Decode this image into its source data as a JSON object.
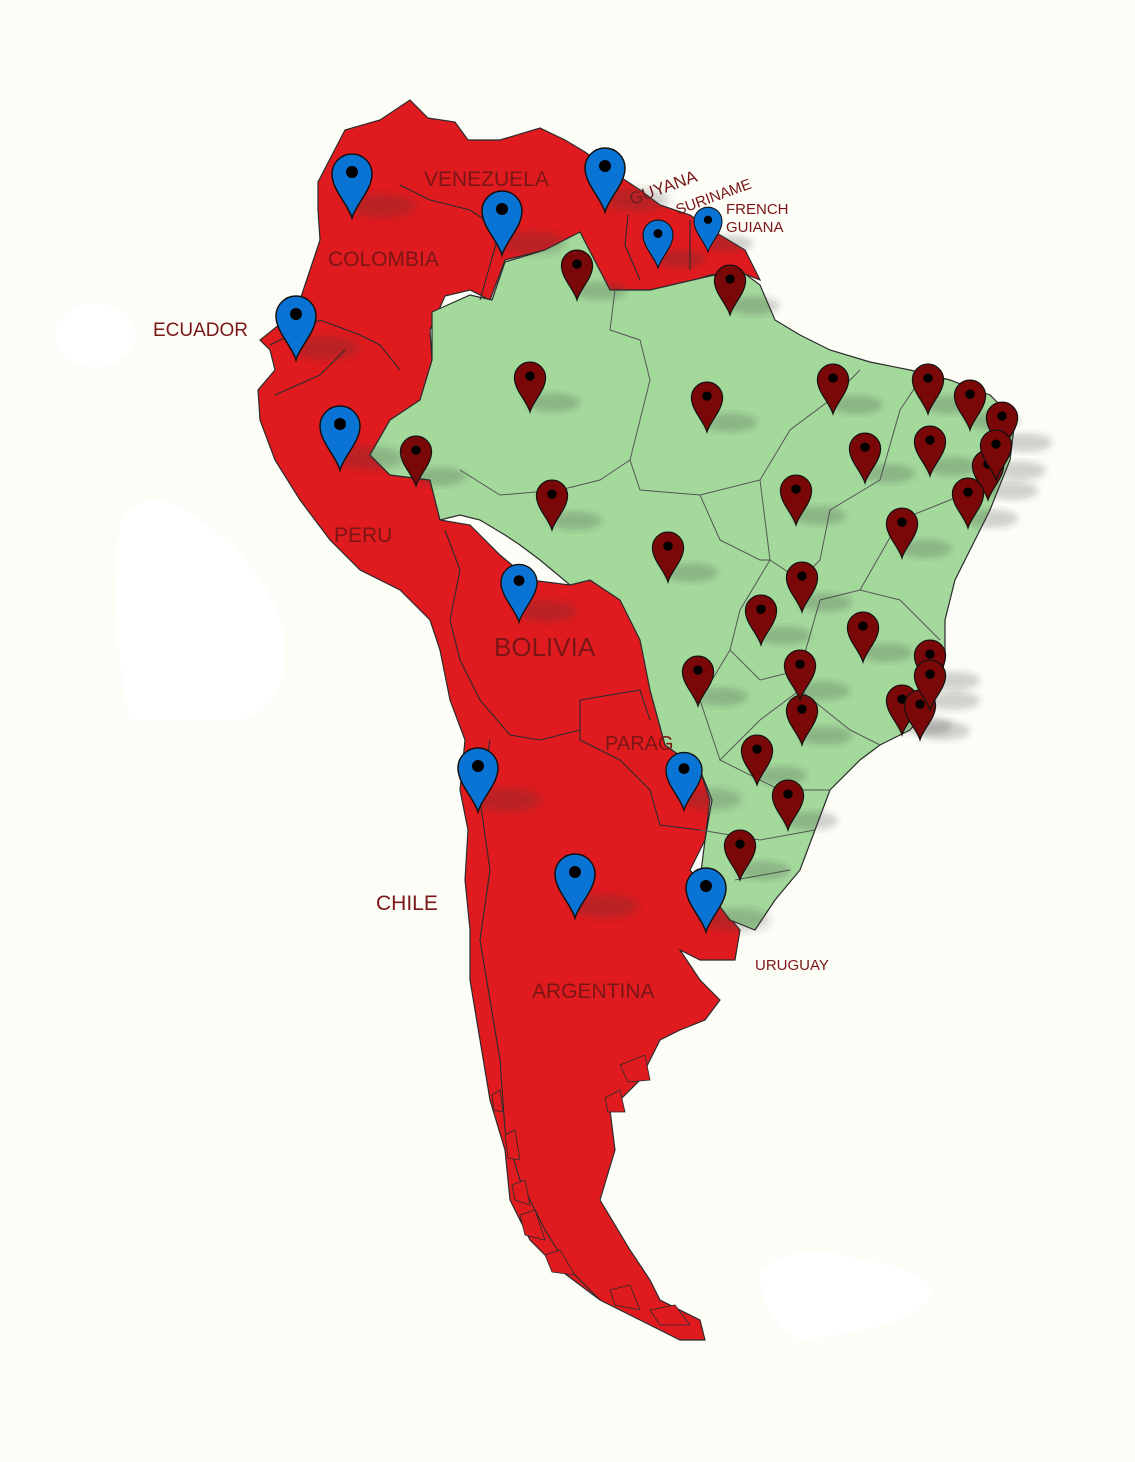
{
  "map": {
    "colors": {
      "background": "#fdfdf8",
      "highlighted_countries": "#e01b1f",
      "brazil": "#a4d99c",
      "border": "#2b2b2b",
      "country_pin": "#0a74d4",
      "state_pin": "#7a0808",
      "label": "#7a1616"
    },
    "labels": {
      "venezuela": "VENEZUELA",
      "guyana": "GUYANA",
      "suriname": "SURINAME",
      "french_guiana_1": "FRENCH",
      "french_guiana_2": "GUIANA",
      "colombia": "COLOMBIA",
      "ecuador": "ECUADOR",
      "peru": "PERU",
      "bolivia": "BOLIVIA",
      "paraguay": "PARAG",
      "chile": "CHILE",
      "argentina": "ARGENTINA",
      "uruguay": "URUGUAY"
    },
    "country_pins": [
      "colombia",
      "venezuela-west",
      "venezuela-east",
      "suriname",
      "french-guiana",
      "ecuador",
      "peru",
      "bolivia",
      "chile",
      "paraguay",
      "argentina",
      "uruguay"
    ],
    "state_pins_count": 31,
    "icon": "map-pin-icon"
  }
}
